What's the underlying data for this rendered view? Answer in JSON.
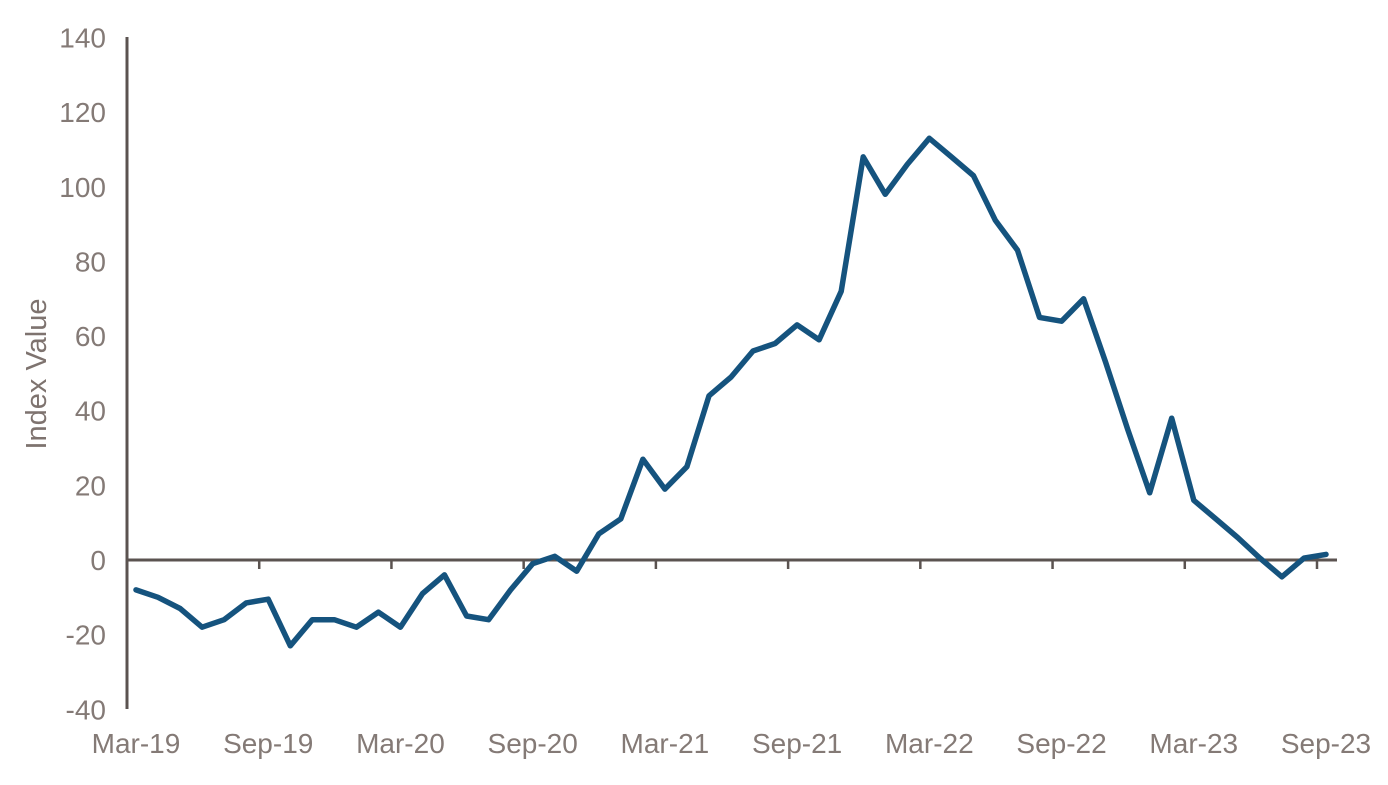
{
  "chart_data": {
    "type": "line",
    "ylabel": "Index Value",
    "x": [
      "Mar-19",
      "Apr-19",
      "May-19",
      "Jun-19",
      "Jul-19",
      "Aug-19",
      "Sep-19",
      "Oct-19",
      "Nov-19",
      "Dec-19",
      "Jan-20",
      "Feb-20",
      "Mar-20",
      "Apr-20",
      "May-20",
      "Jun-20",
      "Jul-20",
      "Aug-20",
      "Sep-20",
      "Oct-20",
      "Nov-20",
      "Dec-20",
      "Jan-21",
      "Feb-21",
      "Mar-21",
      "Apr-21",
      "May-21",
      "Jun-21",
      "Jul-21",
      "Aug-21",
      "Sep-21",
      "Oct-21",
      "Nov-21",
      "Dec-21",
      "Jan-22",
      "Feb-22",
      "Mar-22",
      "Apr-22",
      "May-22",
      "Jun-22",
      "Jul-22",
      "Aug-22",
      "Sep-22",
      "Oct-22",
      "Nov-22",
      "Dec-22",
      "Jan-23",
      "Feb-23",
      "Mar-23",
      "Apr-23",
      "May-23",
      "Jun-23",
      "Jul-23",
      "Aug-23",
      "Sep-23"
    ],
    "values": [
      -8,
      -10,
      -13,
      -18,
      -16,
      -11.5,
      -10.5,
      -23,
      -16,
      -16,
      -18,
      -14,
      -18,
      -9,
      -4,
      -15,
      -16,
      -8,
      -1,
      1,
      -3,
      7,
      11,
      27,
      19,
      25,
      44,
      49,
      56,
      58,
      63,
      59,
      72,
      108,
      98,
      106,
      113,
      108,
      103,
      91,
      83,
      65,
      64,
      70,
      53,
      35,
      18,
      38,
      16,
      11,
      6,
      0.5,
      -4.5,
      0.5,
      1.5
    ],
    "x_tick_labels": [
      "Mar-19",
      "Sep-19",
      "Mar-20",
      "Sep-20",
      "Mar-21",
      "Sep-21",
      "Mar-22",
      "Sep-22",
      "Mar-23",
      "Sep-23"
    ],
    "x_tick_interval_months": 6,
    "ylim": [
      -40,
      140
    ],
    "ytick_step": 20,
    "grid": false,
    "legend": false,
    "series_count": 1
  },
  "colors": {
    "line": "#15537e",
    "axis": "#5b5350",
    "text": "#847a76"
  }
}
